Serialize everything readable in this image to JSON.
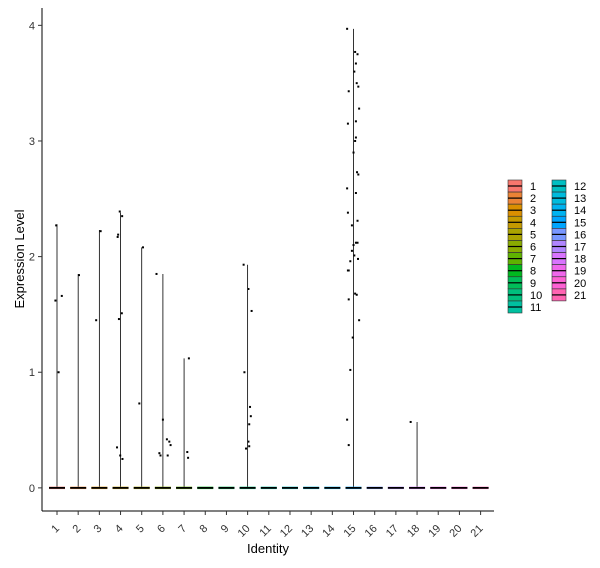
{
  "chart_data": {
    "type": "violin",
    "xlabel": "Identity",
    "ylabel": "Expression Level",
    "ylim": [
      -0.2,
      4.15
    ],
    "yticks": [
      0,
      1,
      2,
      3,
      4
    ],
    "categories": [
      "1",
      "2",
      "3",
      "4",
      "5",
      "6",
      "7",
      "8",
      "9",
      "10",
      "11",
      "12",
      "13",
      "14",
      "15",
      "16",
      "17",
      "18",
      "19",
      "20",
      "21"
    ],
    "colors": {
      "1": "#F8766D",
      "2": "#EB8335",
      "3": "#DA8F00",
      "4": "#C49A00",
      "5": "#AAA300",
      "6": "#8AAB00",
      "7": "#5FB200",
      "8": "#00B81F",
      "9": "#00BC59",
      "10": "#00BF7D",
      "11": "#00C0A0",
      "12": "#00BFC2",
      "13": "#00BBDD",
      "14": "#00B3F1",
      "15": "#00A5FF",
      "16": "#7997FF",
      "17": "#B085FF",
      "18": "#D874FD",
      "19": "#EF67EB",
      "20": "#FD61D3",
      "21": "#FF64B2"
    },
    "violin_max": [
      2.28,
      1.85,
      2.23,
      2.38,
      2.08,
      1.85,
      1.12,
      0,
      0,
      1.93,
      0,
      0,
      0,
      0,
      3.97,
      0,
      0,
      0.57,
      0,
      0,
      0
    ],
    "points": [
      {
        "group": "1",
        "jitter": -0.05,
        "value": 2.27
      },
      {
        "group": "1",
        "jitter": 0.3,
        "value": 1.66
      },
      {
        "group": "1",
        "jitter": 0.1,
        "value": 1.0
      },
      {
        "group": "1",
        "jitter": -0.1,
        "value": 1.62
      },
      {
        "group": "2",
        "jitter": 0.05,
        "value": 1.84
      },
      {
        "group": "3",
        "jitter": -0.2,
        "value": 1.45
      },
      {
        "group": "3",
        "jitter": 0.08,
        "value": 2.22
      },
      {
        "group": "4",
        "jitter": -0.18,
        "value": 2.17
      },
      {
        "group": "4",
        "jitter": -0.15,
        "value": 2.19
      },
      {
        "group": "4",
        "jitter": -0.05,
        "value": 2.39
      },
      {
        "group": "4",
        "jitter": 0.1,
        "value": 2.35
      },
      {
        "group": "4",
        "jitter": -0.1,
        "value": 1.46
      },
      {
        "group": "4",
        "jitter": 0.08,
        "value": 1.51
      },
      {
        "group": "4",
        "jitter": -0.22,
        "value": 0.35
      },
      {
        "group": "4",
        "jitter": -0.02,
        "value": 0.28
      },
      {
        "group": "4",
        "jitter": 0.12,
        "value": 0.25
      },
      {
        "group": "5",
        "jitter": 0.08,
        "value": 2.08
      },
      {
        "group": "5",
        "jitter": -0.15,
        "value": 0.73
      },
      {
        "group": "6",
        "jitter": -0.4,
        "value": 1.85
      },
      {
        "group": "6",
        "jitter": -0.22,
        "value": 0.3
      },
      {
        "group": "6",
        "jitter": -0.15,
        "value": 0.28
      },
      {
        "group": "6",
        "jitter": 0.0,
        "value": 0.59
      },
      {
        "group": "6",
        "jitter": 0.25,
        "value": 0.42
      },
      {
        "group": "6",
        "jitter": 0.4,
        "value": 0.4
      },
      {
        "group": "6",
        "jitter": 0.48,
        "value": 0.37
      },
      {
        "group": "6",
        "jitter": 0.3,
        "value": 0.28
      },
      {
        "group": "7",
        "jitter": 0.3,
        "value": 1.12
      },
      {
        "group": "7",
        "jitter": 0.2,
        "value": 0.31
      },
      {
        "group": "7",
        "jitter": 0.25,
        "value": 0.26
      },
      {
        "group": "10",
        "jitter": -0.25,
        "value": 1.93
      },
      {
        "group": "10",
        "jitter": 0.05,
        "value": 1.72
      },
      {
        "group": "10",
        "jitter": 0.25,
        "value": 1.53
      },
      {
        "group": "10",
        "jitter": -0.2,
        "value": 1.0
      },
      {
        "group": "10",
        "jitter": 0.15,
        "value": 0.7
      },
      {
        "group": "10",
        "jitter": 0.2,
        "value": 0.62
      },
      {
        "group": "10",
        "jitter": 0.1,
        "value": 0.55
      },
      {
        "group": "10",
        "jitter": 0.05,
        "value": 0.4
      },
      {
        "group": "10",
        "jitter": 0.1,
        "value": 0.36
      },
      {
        "group": "10",
        "jitter": -0.1,
        "value": 0.34
      },
      {
        "group": "15",
        "jitter": -0.4,
        "value": 3.97
      },
      {
        "group": "15",
        "jitter": 0.1,
        "value": 3.77
      },
      {
        "group": "15",
        "jitter": 0.25,
        "value": 3.75
      },
      {
        "group": "15",
        "jitter": 0.15,
        "value": 3.67
      },
      {
        "group": "15",
        "jitter": 0.05,
        "value": 3.6
      },
      {
        "group": "15",
        "jitter": 0.2,
        "value": 3.5
      },
      {
        "group": "15",
        "jitter": 0.3,
        "value": 3.47
      },
      {
        "group": "15",
        "jitter": -0.3,
        "value": 3.43
      },
      {
        "group": "15",
        "jitter": 0.35,
        "value": 3.28
      },
      {
        "group": "15",
        "jitter": 0.15,
        "value": 3.17
      },
      {
        "group": "15",
        "jitter": -0.35,
        "value": 3.15
      },
      {
        "group": "15",
        "jitter": 0.15,
        "value": 3.03
      },
      {
        "group": "15",
        "jitter": 0.1,
        "value": 3.0
      },
      {
        "group": "15",
        "jitter": 0.0,
        "value": 2.9
      },
      {
        "group": "15",
        "jitter": 0.22,
        "value": 2.73
      },
      {
        "group": "15",
        "jitter": 0.3,
        "value": 2.71
      },
      {
        "group": "15",
        "jitter": -0.4,
        "value": 2.59
      },
      {
        "group": "15",
        "jitter": 0.15,
        "value": 2.55
      },
      {
        "group": "15",
        "jitter": -0.35,
        "value": 2.38
      },
      {
        "group": "15",
        "jitter": 0.25,
        "value": 2.31
      },
      {
        "group": "15",
        "jitter": -0.1,
        "value": 2.27
      },
      {
        "group": "15",
        "jitter": 0.15,
        "value": 2.12
      },
      {
        "group": "15",
        "jitter": 0.25,
        "value": 2.12
      },
      {
        "group": "15",
        "jitter": 0.0,
        "value": 2.1
      },
      {
        "group": "15",
        "jitter": -0.1,
        "value": 2.05
      },
      {
        "group": "15",
        "jitter": 0.05,
        "value": 2.01
      },
      {
        "group": "15",
        "jitter": 0.28,
        "value": 1.98
      },
      {
        "group": "15",
        "jitter": -0.2,
        "value": 1.96
      },
      {
        "group": "15",
        "jitter": -0.35,
        "value": 1.88
      },
      {
        "group": "15",
        "jitter": -0.3,
        "value": 1.88
      },
      {
        "group": "15",
        "jitter": 0.1,
        "value": 1.68
      },
      {
        "group": "15",
        "jitter": 0.2,
        "value": 1.67
      },
      {
        "group": "15",
        "jitter": -0.3,
        "value": 1.63
      },
      {
        "group": "15",
        "jitter": 0.35,
        "value": 1.45
      },
      {
        "group": "15",
        "jitter": -0.05,
        "value": 1.3
      },
      {
        "group": "15",
        "jitter": -0.2,
        "value": 1.02
      },
      {
        "group": "15",
        "jitter": -0.4,
        "value": 0.59
      },
      {
        "group": "15",
        "jitter": -0.3,
        "value": 0.37
      },
      {
        "group": "18",
        "jitter": -0.4,
        "value": 0.57
      }
    ]
  }
}
